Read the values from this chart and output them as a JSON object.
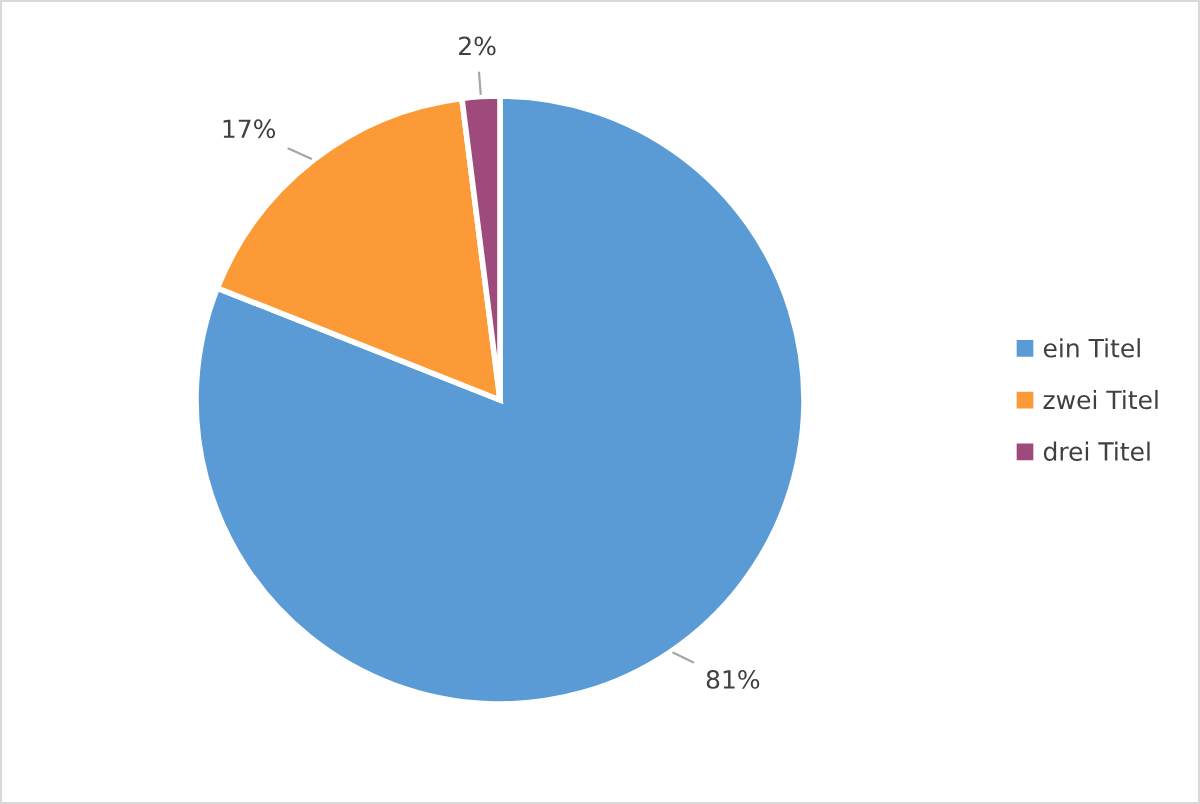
{
  "chart_data": {
    "type": "pie",
    "categories": [
      "ein Titel",
      "zwei Titel",
      "drei Titel"
    ],
    "values": [
      81,
      17,
      2
    ],
    "colors": [
      "#5b9bd5",
      "#fd9a38",
      "#9e4a7c"
    ],
    "value_labels": [
      "81%",
      "17%",
      "2%"
    ],
    "legend": "right"
  }
}
